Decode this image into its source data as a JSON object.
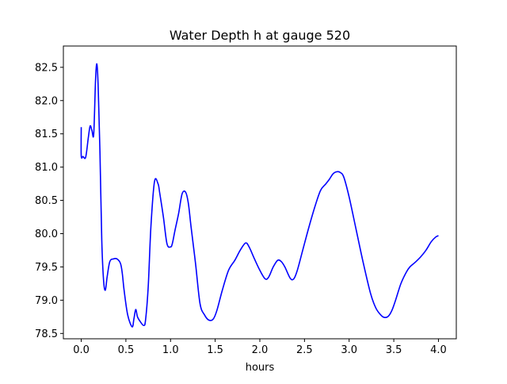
{
  "chart_data": {
    "type": "line",
    "title": "Water Depth h at gauge 520",
    "xlabel": "hours",
    "ylabel": "",
    "xlim": [
      -0.2,
      4.2
    ],
    "ylim": [
      78.42,
      82.82
    ],
    "x_ticks": [
      0.0,
      0.5,
      1.0,
      1.5,
      2.0,
      2.5,
      3.0,
      3.5,
      4.0
    ],
    "x_tick_labels": [
      "0.0",
      "0.5",
      "1.0",
      "1.5",
      "2.0",
      "2.5",
      "3.0",
      "3.5",
      "4.0"
    ],
    "y_ticks": [
      78.5,
      79.0,
      79.5,
      80.0,
      80.5,
      81.0,
      81.5,
      82.0,
      82.5
    ],
    "y_tick_labels": [
      "78.5",
      "79.0",
      "79.5",
      "80.0",
      "80.5",
      "81.0",
      "81.5",
      "82.0",
      "82.5"
    ],
    "grid": false,
    "legend": "none",
    "series": [
      {
        "color": "#0000ff",
        "x": [
          0.0,
          0.0,
          0.02,
          0.05,
          0.08,
          0.1,
          0.12,
          0.14,
          0.16,
          0.175,
          0.19,
          0.21,
          0.23,
          0.25,
          0.27,
          0.29,
          0.32,
          0.36,
          0.4,
          0.44,
          0.46,
          0.48,
          0.52,
          0.57,
          0.59,
          0.61,
          0.63,
          0.66,
          0.7,
          0.72,
          0.75,
          0.78,
          0.82,
          0.86,
          0.88,
          0.92,
          0.96,
          1.0,
          1.02,
          1.05,
          1.09,
          1.13,
          1.17,
          1.2,
          1.23,
          1.28,
          1.33,
          1.38,
          1.43,
          1.48,
          1.52,
          1.58,
          1.65,
          1.72,
          1.78,
          1.84,
          1.88,
          1.94,
          2.0,
          2.06,
          2.1,
          2.15,
          2.2,
          2.24,
          2.28,
          2.34,
          2.38,
          2.42,
          2.48,
          2.55,
          2.62,
          2.68,
          2.74,
          2.78,
          2.82,
          2.86,
          2.9,
          2.94,
          3.0,
          3.08,
          3.16,
          3.24,
          3.3,
          3.36,
          3.4,
          3.44,
          3.48,
          3.52,
          3.58,
          3.64,
          3.68,
          3.74,
          3.8,
          3.86,
          3.92,
          3.97,
          4.0
        ],
        "y": [
          81.6,
          81.17,
          81.16,
          81.15,
          81.45,
          81.62,
          81.55,
          81.5,
          82.3,
          82.55,
          82.2,
          81.2,
          79.9,
          79.3,
          79.15,
          79.35,
          79.58,
          79.62,
          79.62,
          79.55,
          79.4,
          79.15,
          78.78,
          78.6,
          78.72,
          78.86,
          78.75,
          78.68,
          78.62,
          78.7,
          79.2,
          80.1,
          80.78,
          80.75,
          80.6,
          80.25,
          79.85,
          79.8,
          79.85,
          80.05,
          80.3,
          80.6,
          80.62,
          80.45,
          80.1,
          79.55,
          78.95,
          78.78,
          78.7,
          78.72,
          78.85,
          79.15,
          79.45,
          79.6,
          79.75,
          79.86,
          79.8,
          79.62,
          79.45,
          79.32,
          79.35,
          79.5,
          79.6,
          79.58,
          79.5,
          79.33,
          79.32,
          79.45,
          79.75,
          80.1,
          80.42,
          80.65,
          80.75,
          80.82,
          80.9,
          80.93,
          80.92,
          80.85,
          80.55,
          80.05,
          79.55,
          79.1,
          78.88,
          78.77,
          78.74,
          78.76,
          78.85,
          79.0,
          79.25,
          79.42,
          79.5,
          79.57,
          79.65,
          79.75,
          79.88,
          79.95,
          79.97
        ]
      }
    ]
  }
}
